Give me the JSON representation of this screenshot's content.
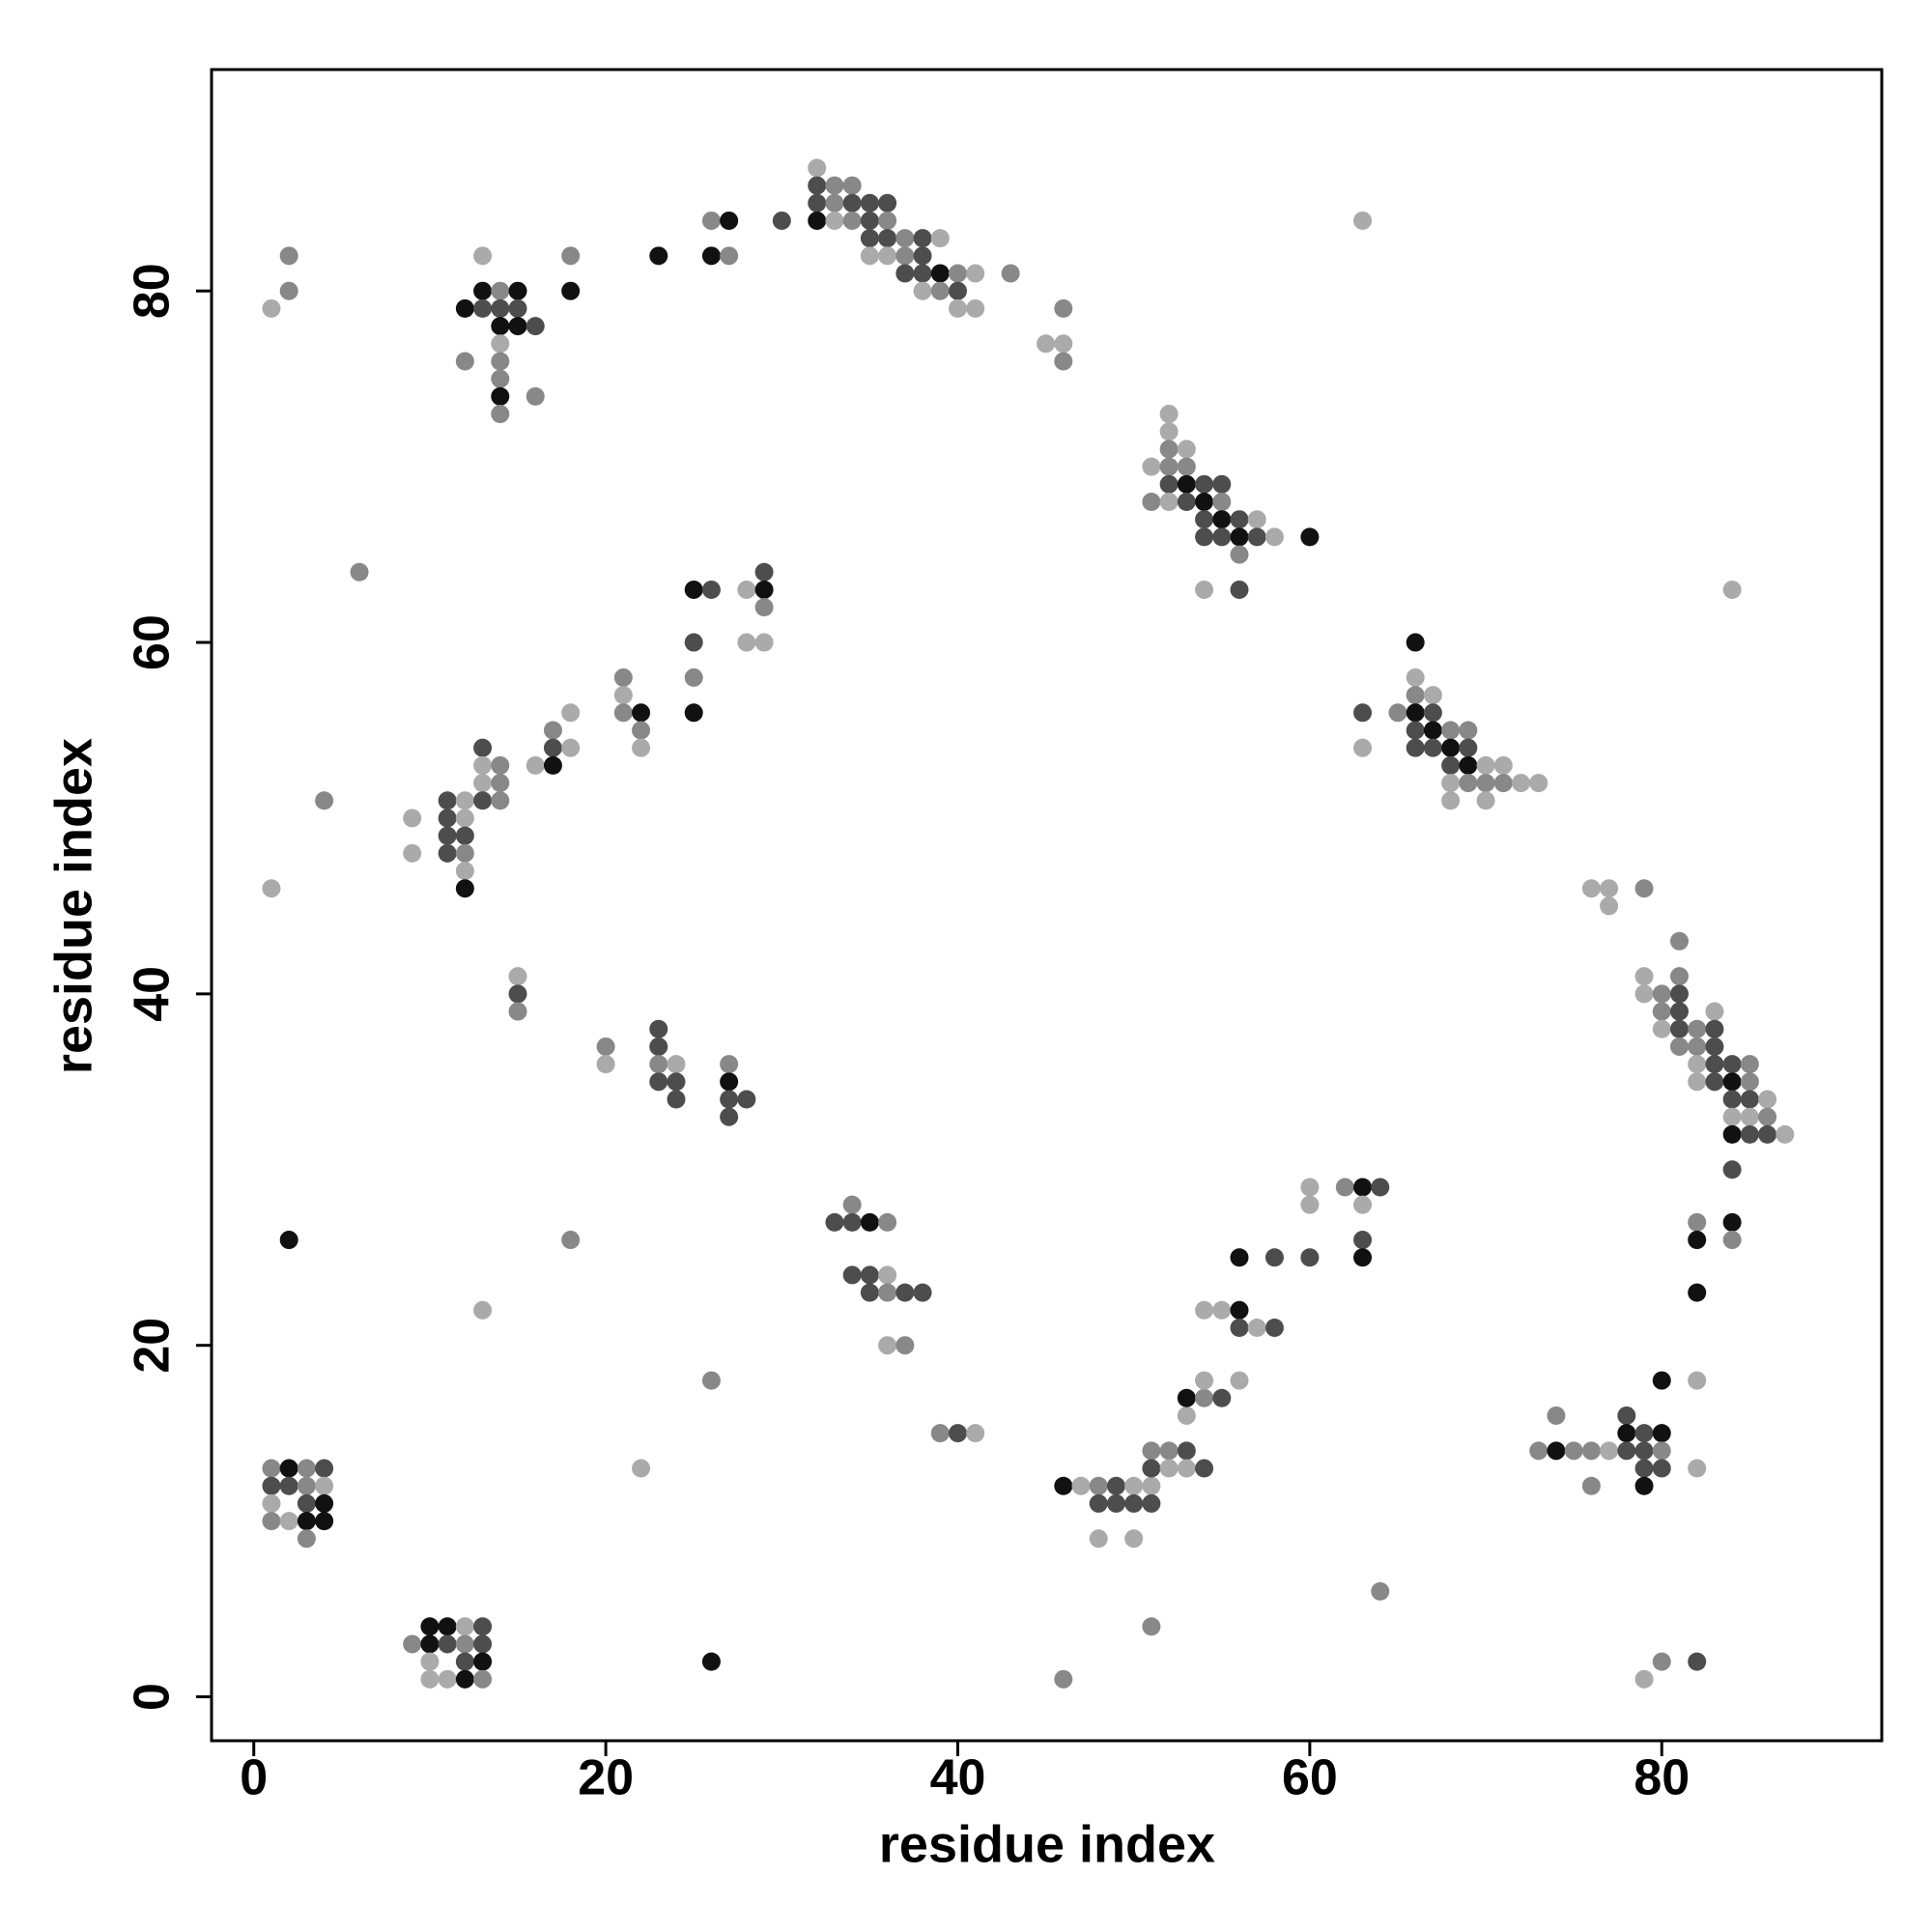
{
  "chart_data": {
    "type": "scatter",
    "x_label": "residue index",
    "y_label": "residue index",
    "xlim": [
      -2.4,
      92.5
    ],
    "ylim": [
      -2.5,
      92.6
    ],
    "xticks": [
      0,
      20,
      40,
      60,
      80
    ],
    "yticks": [
      0,
      20,
      40,
      60,
      80
    ],
    "x": [
      1,
      2,
      3,
      4,
      1,
      2,
      3,
      4,
      1,
      3,
      4,
      1,
      2,
      3,
      4,
      3,
      2,
      10,
      11,
      12,
      13,
      9,
      10,
      11,
      12,
      13,
      10,
      12,
      13,
      10,
      11,
      12,
      13,
      26,
      22,
      13,
      18,
      26,
      9,
      9,
      11,
      12,
      11,
      12,
      11,
      12,
      11,
      12,
      12,
      12,
      13,
      13,
      14,
      13,
      14,
      13,
      14,
      16,
      17,
      17,
      18,
      17,
      18,
      1,
      4,
      6,
      21,
      21,
      21,
      22,
      22,
      22,
      25,
      26,
      25,
      25,
      25,
      28,
      29,
      29,
      29,
      28,
      29,
      1,
      2,
      2,
      13,
      12,
      13,
      14,
      15,
      13,
      14,
      15,
      14,
      15,
      16,
      14,
      14,
      12,
      14,
      14,
      16,
      14,
      18,
      18,
      23,
      26,
      27,
      26,
      27,
      30,
      32,
      32,
      33,
      34,
      32,
      33,
      34,
      35,
      36,
      32,
      33,
      34,
      35,
      36,
      35,
      36,
      37,
      38,
      39,
      35,
      36,
      37,
      38,
      37,
      38,
      39,
      40,
      41,
      43,
      38,
      39,
      40,
      40,
      41,
      46,
      45,
      46,
      46,
      52,
      52,
      52,
      53,
      51,
      52,
      53,
      52,
      53,
      54,
      55,
      51,
      52,
      53,
      54,
      55,
      54,
      55,
      56,
      57,
      54,
      55,
      56,
      57,
      58,
      60,
      56,
      54,
      56,
      66,
      66,
      66,
      67,
      63,
      65,
      66,
      67,
      66,
      67,
      68,
      69,
      63,
      66,
      67,
      68,
      69,
      68,
      69,
      70,
      71,
      68,
      69,
      70,
      71,
      72,
      73,
      68,
      70,
      63,
      84,
      76,
      77,
      77,
      79,
      81,
      79,
      81,
      79,
      80,
      81,
      80,
      81,
      83,
      80,
      81,
      82,
      83,
      81,
      82,
      83,
      82,
      83,
      84,
      85,
      82,
      83,
      84,
      85,
      84,
      85,
      86,
      84,
      85,
      86,
      84,
      85,
      86,
      87,
      84,
      82,
      84,
      82,
      84,
      82,
      82,
      82,
      15,
      15,
      15,
      20,
      20,
      23,
      23,
      23,
      24,
      23,
      24,
      24,
      27,
      27,
      27,
      28,
      27,
      34,
      33,
      34,
      35,
      36,
      34,
      35,
      36,
      35,
      36,
      37,
      38,
      36,
      37,
      39,
      40,
      41,
      46,
      47,
      48,
      49,
      50,
      51,
      48,
      49,
      50,
      51,
      48,
      50,
      51,
      52,
      53,
      51,
      52,
      53,
      54,
      53,
      53,
      54,
      55,
      54,
      56,
      54,
      55,
      56,
      56,
      57,
      58,
      56,
      58,
      60,
      60,
      60,
      62,
      63,
      64,
      63,
      63,
      63,
      51,
      46,
      64,
      74,
      73,
      74,
      75,
      76,
      77,
      76,
      78,
      78,
      79,
      80,
      78,
      79,
      80,
      79,
      80,
      79,
      80,
      79,
      80,
      82
    ],
    "y": [
      13,
      13,
      13,
      13,
      12,
      12,
      12,
      12,
      11,
      11,
      11,
      10,
      10,
      10,
      10,
      9,
      26,
      4,
      4,
      4,
      4,
      3,
      3,
      3,
      3,
      3,
      2,
      2,
      2,
      1,
      1,
      1,
      1,
      2,
      13,
      22,
      26,
      18,
      50,
      48,
      51,
      51,
      50,
      50,
      49,
      49,
      48,
      48,
      47,
      46,
      54,
      53,
      53,
      52,
      52,
      51,
      51,
      53,
      55,
      54,
      54,
      53,
      56,
      46,
      51,
      64,
      58,
      57,
      56,
      56,
      55,
      54,
      63,
      63,
      60,
      58,
      56,
      63,
      64,
      63,
      62,
      60,
      60,
      79,
      82,
      80,
      82,
      79,
      80,
      80,
      80,
      79,
      79,
      79,
      78,
      78,
      78,
      77,
      76,
      76,
      75,
      74,
      74,
      73,
      82,
      80,
      82,
      84,
      84,
      82,
      82,
      84,
      87,
      86,
      86,
      86,
      85,
      85,
      85,
      85,
      85,
      84,
      84,
      84,
      84,
      84,
      83,
      83,
      83,
      83,
      83,
      82,
      82,
      82,
      82,
      81,
      81,
      81,
      81,
      81,
      81,
      80,
      80,
      80,
      79,
      79,
      79,
      77,
      77,
      76,
      73,
      72,
      71,
      71,
      70,
      70,
      70,
      69,
      69,
      69,
      69,
      68,
      68,
      68,
      68,
      68,
      67,
      67,
      67,
      67,
      66,
      66,
      66,
      66,
      66,
      66,
      65,
      63,
      63,
      60,
      58,
      57,
      57,
      56,
      56,
      56,
      56,
      55,
      55,
      55,
      55,
      54,
      54,
      54,
      54,
      54,
      53,
      53,
      53,
      53,
      52,
      52,
      52,
      52,
      52,
      52,
      51,
      51,
      84,
      63,
      46,
      46,
      45,
      46,
      43,
      41,
      41,
      40,
      40,
      40,
      39,
      39,
      39,
      38,
      38,
      38,
      38,
      37,
      37,
      37,
      36,
      36,
      36,
      36,
      35,
      35,
      35,
      35,
      34,
      34,
      34,
      33,
      33,
      33,
      32,
      32,
      32,
      32,
      30,
      27,
      27,
      26,
      26,
      23,
      18,
      13,
      41,
      40,
      39,
      37,
      36,
      38,
      37,
      36,
      36,
      35,
      35,
      34,
      36,
      35,
      34,
      34,
      33,
      28,
      27,
      27,
      27,
      27,
      24,
      24,
      24,
      23,
      23,
      23,
      23,
      20,
      20,
      15,
      15,
      15,
      12,
      12,
      12,
      12,
      12,
      12,
      11,
      11,
      11,
      11,
      9,
      9,
      14,
      14,
      14,
      13,
      13,
      13,
      13,
      16,
      17,
      17,
      17,
      18,
      18,
      22,
      22,
      22,
      21,
      21,
      21,
      25,
      25,
      25,
      29,
      28,
      29,
      29,
      29,
      28,
      26,
      25,
      4,
      1,
      6,
      16,
      14,
      14,
      14,
      14,
      14,
      12,
      16,
      15,
      15,
      15,
      14,
      14,
      14,
      13,
      13,
      12,
      18,
      1,
      2,
      2
    ],
    "colors": [
      "#888",
      "#111",
      "#888",
      "#4d4d4d",
      "#4d4d4d",
      "#4d4d4d",
      "#888",
      "#aaa",
      "#aaa",
      "#4d4d4d",
      "#111",
      "#888",
      "#aaa",
      "#111",
      "#111",
      "#888",
      "#111",
      "#111",
      "#111",
      "#aaa",
      "#4d4d4d",
      "#888",
      "#111",
      "#4d4d4d",
      "#888",
      "#4d4d4d",
      "#aaa",
      "#4d4d4d",
      "#111",
      "#aaa",
      "#aaa",
      "#111",
      "#888",
      "#111",
      "#aaa",
      "#aaa",
      "#888",
      "#888",
      "#aaa",
      "#aaa",
      "#4d4d4d",
      "#aaa",
      "#4d4d4d",
      "#aaa",
      "#4d4d4d",
      "#4d4d4d",
      "#4d4d4d",
      "#888",
      "#aaa",
      "#111",
      "#4d4d4d",
      "#aaa",
      "#888",
      "#aaa",
      "#888",
      "#4d4d4d",
      "#888",
      "#aaa",
      "#888",
      "#4d4d4d",
      "#aaa",
      "#111",
      "#aaa",
      "#aaa",
      "#888",
      "#888",
      "#888",
      "#aaa",
      "#888",
      "#111",
      "#888",
      "#aaa",
      "#111",
      "#4d4d4d",
      "#4d4d4d",
      "#888",
      "#111",
      "#aaa",
      "#4d4d4d",
      "#111",
      "#888",
      "#aaa",
      "#aaa",
      "#aaa",
      "#888",
      "#888",
      "#aaa",
      "#111",
      "#111",
      "#888",
      "#111",
      "#4d4d4d",
      "#4d4d4d",
      "#4d4d4d",
      "#111",
      "#111",
      "#4d4d4d",
      "#aaa",
      "#888",
      "#888",
      "#888",
      "#111",
      "#888",
      "#888",
      "#888",
      "#111",
      "#111",
      "#888",
      "#111",
      "#111",
      "#888",
      "#4d4d4d",
      "#aaa",
      "#4d4d4d",
      "#888",
      "#888",
      "#4d4d4d",
      "#888",
      "#4d4d4d",
      "#4d4d4d",
      "#4d4d4d",
      "#111",
      "#aaa",
      "#888",
      "#4d4d4d",
      "#888",
      "#4d4d4d",
      "#4d4d4d",
      "#888",
      "#4d4d4d",
      "#aaa",
      "#aaa",
      "#aaa",
      "#888",
      "#4d4d4d",
      "#4d4d4d",
      "#4d4d4d",
      "#111",
      "#888",
      "#aaa",
      "#888",
      "#aaa",
      "#888",
      "#4d4d4d",
      "#aaa",
      "#aaa",
      "#888",
      "#aaa",
      "#aaa",
      "#888",
      "#aaa",
      "#aaa",
      "#888",
      "#aaa",
      "#aaa",
      "#888",
      "#888",
      "#4d4d4d",
      "#111",
      "#4d4d4d",
      "#4d4d4d",
      "#888",
      "#aaa",
      "#4d4d4d",
      "#111",
      "#888",
      "#4d4d4d",
      "#111",
      "#4d4d4d",
      "#aaa",
      "#4d4d4d",
      "#4d4d4d",
      "#111",
      "#4d4d4d",
      "#aaa",
      "#111",
      "#888",
      "#aaa",
      "#4d4d4d",
      "#111",
      "#aaa",
      "#888",
      "#aaa",
      "#4d4d4d",
      "#888",
      "#111",
      "#4d4d4d",
      "#4d4d4d",
      "#111",
      "#888",
      "#888",
      "#aaa",
      "#4d4d4d",
      "#4d4d4d",
      "#111",
      "#4d4d4d",
      "#4d4d4d",
      "#111",
      "#aaa",
      "#aaa",
      "#aaa",
      "#888",
      "#888",
      "#888",
      "#aaa",
      "#aaa",
      "#aaa",
      "#aaa",
      "#aaa",
      "#aaa",
      "#aaa",
      "#aaa",
      "#aaa",
      "#888",
      "#888",
      "#aaa",
      "#888",
      "#aaa",
      "#888",
      "#4d4d4d",
      "#888",
      "#4d4d4d",
      "#aaa",
      "#aaa",
      "#4d4d4d",
      "#888",
      "#4d4d4d",
      "#888",
      "#888",
      "#4d4d4d",
      "#aaa",
      "#4d4d4d",
      "#4d4d4d",
      "#888",
      "#aaa",
      "#4d4d4d",
      "#111",
      "#888",
      "#4d4d4d",
      "#4d4d4d",
      "#aaa",
      "#aaa",
      "#aaa",
      "#888",
      "#111",
      "#4d4d4d",
      "#4d4d4d",
      "#aaa",
      "#4d4d4d",
      "#888",
      "#111",
      "#111",
      "#888",
      "#111",
      "#aaa",
      "#aaa",
      "#aaa",
      "#4d4d4d",
      "#888",
      "#888",
      "#aaa",
      "#4d4d4d",
      "#4d4d4d",
      "#888",
      "#aaa",
      "#4d4d4d",
      "#4d4d4d",
      "#4d4d4d",
      "#888",
      "#111",
      "#4d4d4d",
      "#4d4d4d",
      "#4d4d4d",
      "#888",
      "#4d4d4d",
      "#4d4d4d",
      "#111",
      "#888",
      "#4d4d4d",
      "#4d4d4d",
      "#aaa",
      "#4d4d4d",
      "#888",
      "#4d4d4d",
      "#4d4d4d",
      "#aaa",
      "#888",
      "#888",
      "#4d4d4d",
      "#aaa",
      "#111",
      "#aaa",
      "#888",
      "#4d4d4d",
      "#aaa",
      "#aaa",
      "#4d4d4d",
      "#4d4d4d",
      "#4d4d4d",
      "#4d4d4d",
      "#aaa",
      "#aaa",
      "#888",
      "#888",
      "#4d4d4d",
      "#4d4d4d",
      "#aaa",
      "#aaa",
      "#4d4d4d",
      "#aaa",
      "#111",
      "#888",
      "#4d4d4d",
      "#aaa",
      "#aaa",
      "#aaa",
      "#aaa",
      "#111",
      "#4d4d4d",
      "#aaa",
      "#4d4d4d",
      "#111",
      "#4d4d4d",
      "#4d4d4d",
      "#aaa",
      "#aaa",
      "#888",
      "#111",
      "#4d4d4d",
      "#aaa",
      "#4d4d4d",
      "#111",
      "#888",
      "#888",
      "#888",
      "#888",
      "#888",
      "#111",
      "#888",
      "#888",
      "#aaa",
      "#888",
      "#4d4d4d",
      "#111",
      "#4d4d4d",
      "#111",
      "#4d4d4d",
      "#4d4d4d",
      "#888",
      "#4d4d4d",
      "#4d4d4d",
      "#111",
      "#111",
      "#aaa",
      "#888",
      "#4d4d4d"
    ]
  }
}
